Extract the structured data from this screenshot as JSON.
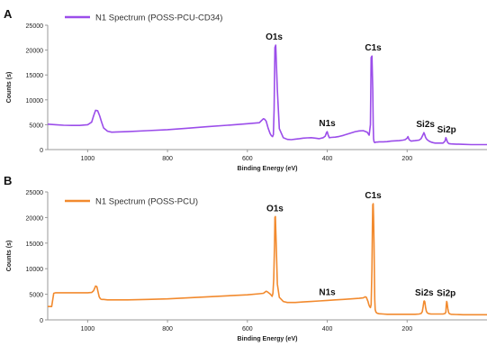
{
  "chart_data": [
    {
      "panel_label": "A",
      "type": "line",
      "color": "#9b4dea",
      "series": [
        {
          "name": "N1 Spectrum (POSS-PCU-CD34)",
          "x": [
            1100,
            1080,
            1060,
            1040,
            1020,
            1000,
            990,
            985,
            980,
            975,
            970,
            965,
            960,
            950,
            940,
            900,
            850,
            800,
            750,
            700,
            650,
            600,
            570,
            565,
            560,
            557,
            553,
            548,
            543,
            540,
            537,
            535,
            533,
            531,
            529,
            525,
            520,
            510,
            500,
            490,
            480,
            470,
            460,
            450,
            440,
            430,
            420,
            410,
            405,
            402,
            400,
            398,
            395,
            390,
            380,
            370,
            360,
            350,
            340,
            330,
            320,
            310,
            300,
            295,
            292,
            290,
            288,
            286,
            285,
            284,
            283,
            282,
            281,
            280,
            278,
            275,
            270,
            260,
            250,
            240,
            230,
            220,
            210,
            205,
            200,
            198,
            195,
            190,
            185,
            180,
            170,
            165,
            160,
            158,
            156,
            154,
            152,
            150,
            145,
            140,
            135,
            130,
            120,
            110,
            105,
            103,
            101,
            99,
            97,
            95,
            90,
            80,
            60,
            40,
            20,
            0
          ],
          "y": [
            5100,
            5000,
            4900,
            4850,
            4850,
            5000,
            5500,
            6800,
            7900,
            7800,
            6800,
            5500,
            4350,
            3700,
            3500,
            3600,
            3800,
            4000,
            4300,
            4600,
            4900,
            5200,
            5400,
            5800,
            6200,
            6100,
            5700,
            4300,
            3200,
            2800,
            2600,
            3000,
            8000,
            20500,
            21000,
            12000,
            4200,
            2400,
            2050,
            2000,
            2100,
            2200,
            2300,
            2350,
            2400,
            2300,
            2200,
            2400,
            2700,
            3400,
            3600,
            3000,
            2400,
            2450,
            2500,
            2650,
            2850,
            3100,
            3350,
            3600,
            3750,
            3800,
            3500,
            2900,
            5000,
            18500,
            18800,
            12000,
            5000,
            2200,
            1600,
            1500,
            1400,
            1450,
            1500,
            1500,
            1550,
            1550,
            1600,
            1700,
            1750,
            1800,
            1900,
            2000,
            2300,
            2600,
            2000,
            1700,
            1750,
            1800,
            1900,
            2200,
            3000,
            3400,
            3000,
            2500,
            2200,
            2000,
            1700,
            1500,
            1400,
            1300,
            1300,
            1300,
            1700,
            2400,
            2000,
            1500,
            1300,
            1200,
            1150,
            1100,
            1050,
            1000,
            1000,
            1000
          ]
        }
      ],
      "annotations": [
        {
          "text": "O1s",
          "x": 533,
          "y": 21000
        },
        {
          "text": "N1s",
          "x": 400,
          "y": 3600
        },
        {
          "text": "C1s",
          "x": 285,
          "y": 18800
        },
        {
          "text": "Si2s",
          "x": 154,
          "y": 3400
        },
        {
          "text": "Si2p",
          "x": 101,
          "y": 2400
        }
      ],
      "xlabel": "Binding Energy (eV)",
      "ylabel": "Counts (s)",
      "xlim": [
        1100,
        0
      ],
      "ylim": [
        0,
        25000
      ],
      "xticks": [
        1000,
        800,
        600,
        400,
        200
      ],
      "yticks": [
        0,
        5000,
        10000,
        15000,
        20000,
        25000
      ],
      "grid": false,
      "legend_position": "top-left"
    },
    {
      "panel_label": "B",
      "type": "line",
      "color": "#f28a2e",
      "series": [
        {
          "name": "N1 Spectrum (POSS-PCU)",
          "x": [
            1100,
            1095,
            1090,
            1085,
            1080,
            1070,
            1050,
            1020,
            1000,
            990,
            985,
            980,
            977,
            974,
            971,
            968,
            965,
            960,
            950,
            900,
            850,
            800,
            750,
            700,
            650,
            600,
            570,
            560,
            556,
            553,
            550,
            547,
            545,
            542,
            540,
            538,
            536,
            534,
            532,
            531,
            530,
            528,
            525,
            520,
            510,
            500,
            480,
            460,
            440,
            420,
            400,
            380,
            360,
            340,
            320,
            310,
            305,
            302,
            300,
            298,
            296,
            294,
            292,
            290,
            288,
            287,
            286,
            285,
            284,
            283,
            282,
            281,
            280,
            278,
            275,
            270,
            260,
            250,
            240,
            230,
            220,
            200,
            190,
            180,
            170,
            165,
            162,
            160,
            158,
            157,
            156,
            155,
            154,
            152,
            150,
            148,
            145,
            140,
            130,
            120,
            110,
            105,
            103,
            102,
            101,
            100,
            98,
            96,
            94,
            90,
            80,
            60,
            40,
            20,
            0
          ],
          "y": [
            2600,
            2600,
            2600,
            5200,
            5300,
            5300,
            5300,
            5300,
            5300,
            5350,
            5700,
            6600,
            6500,
            5500,
            4500,
            4100,
            4000,
            4000,
            3900,
            3900,
            4000,
            4100,
            4300,
            4500,
            4700,
            4900,
            5100,
            5200,
            5400,
            5600,
            5500,
            5300,
            5200,
            5000,
            4800,
            4600,
            5200,
            8000,
            15000,
            20000,
            20200,
            15000,
            7000,
            4400,
            3600,
            3400,
            3400,
            3500,
            3600,
            3700,
            3800,
            3900,
            4000,
            4100,
            4200,
            4300,
            4500,
            4400,
            4000,
            3600,
            3000,
            2600,
            2400,
            3000,
            10000,
            18000,
            22500,
            22700,
            20000,
            15000,
            9000,
            4000,
            2000,
            1500,
            1300,
            1200,
            1150,
            1100,
            1100,
            1100,
            1100,
            1100,
            1100,
            1100,
            1150,
            1250,
            1600,
            2500,
            3600,
            3700,
            3600,
            3200,
            2500,
            1700,
            1400,
            1300,
            1200,
            1150,
            1150,
            1150,
            1150,
            1250,
            1500,
            2800,
            3600,
            3400,
            2200,
            1400,
            1200,
            1100,
            1050,
            1000,
            1000,
            1000,
            1000
          ]
        }
      ],
      "annotations": [
        {
          "text": "O1s",
          "x": 531,
          "y": 20200
        },
        {
          "text": "N1s",
          "x": 400,
          "y": 3800
        },
        {
          "text": "C1s",
          "x": 285,
          "y": 22700
        },
        {
          "text": "Si2s",
          "x": 157,
          "y": 3700
        },
        {
          "text": "Si2p",
          "x": 102,
          "y": 3600
        }
      ],
      "xlabel": "Binding Energy (eV)",
      "ylabel": "Counts (s)",
      "xlim": [
        1100,
        0
      ],
      "ylim": [
        0,
        25000
      ],
      "xticks": [
        1000,
        800,
        600,
        400,
        200
      ],
      "yticks": [
        0,
        5000,
        10000,
        15000,
        20000,
        25000
      ],
      "grid": false,
      "legend_position": "top-left"
    }
  ]
}
